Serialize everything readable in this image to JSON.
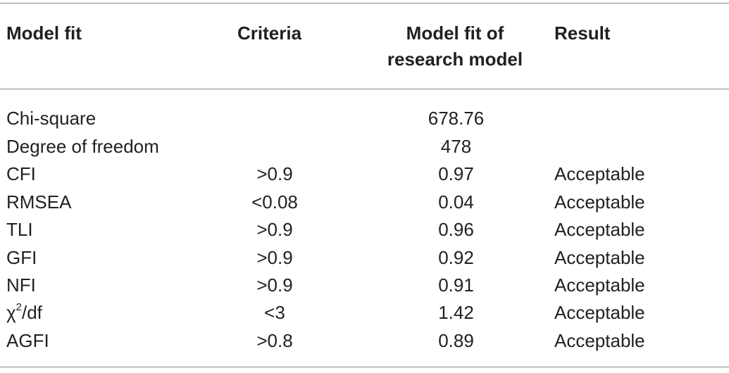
{
  "table": {
    "headers": {
      "model_fit": "Model fit",
      "criteria": "Criteria",
      "research_fit_line1": "Model fit of",
      "research_fit_line2": "research model",
      "result": "Result"
    },
    "rows": [
      {
        "model": "Chi-square",
        "criteria": "",
        "fit": "678.76",
        "result": ""
      },
      {
        "model": "Degree of freedom",
        "criteria": "",
        "fit": "478",
        "result": ""
      },
      {
        "model": "CFI",
        "criteria": ">0.9",
        "fit": "0.97",
        "result": "Acceptable"
      },
      {
        "model": "RMSEA",
        "criteria": "<0.08",
        "fit": "0.04",
        "result": "Acceptable"
      },
      {
        "model": "TLI",
        "criteria": ">0.9",
        "fit": "0.96",
        "result": "Acceptable"
      },
      {
        "model": "GFI",
        "criteria": ">0.9",
        "fit": "0.92",
        "result": "Acceptable"
      },
      {
        "model": "NFI",
        "criteria": ">0.9",
        "fit": "0.91",
        "result": "Acceptable"
      },
      {
        "model_base": "χ",
        "model_sup": "2",
        "model_rest": "/df",
        "criteria": "<3",
        "fit": "1.42",
        "result": "Acceptable"
      },
      {
        "model": "AGFI",
        "criteria": ">0.8",
        "fit": "0.89",
        "result": "Acceptable"
      }
    ]
  }
}
